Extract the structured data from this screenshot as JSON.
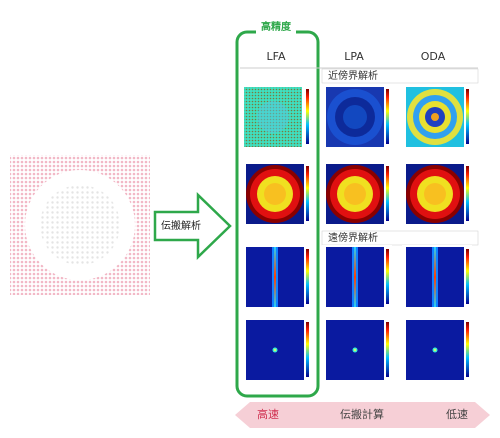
{
  "badge": "高精度",
  "columns": [
    "LFA",
    "LPA",
    "ODA"
  ],
  "sections": [
    "近傍界解析",
    "遠傍界解析"
  ],
  "arrow_label": "伝搬解析",
  "speed_bar": {
    "left": "高速",
    "center": "伝搬計算",
    "right": "低速"
  }
}
